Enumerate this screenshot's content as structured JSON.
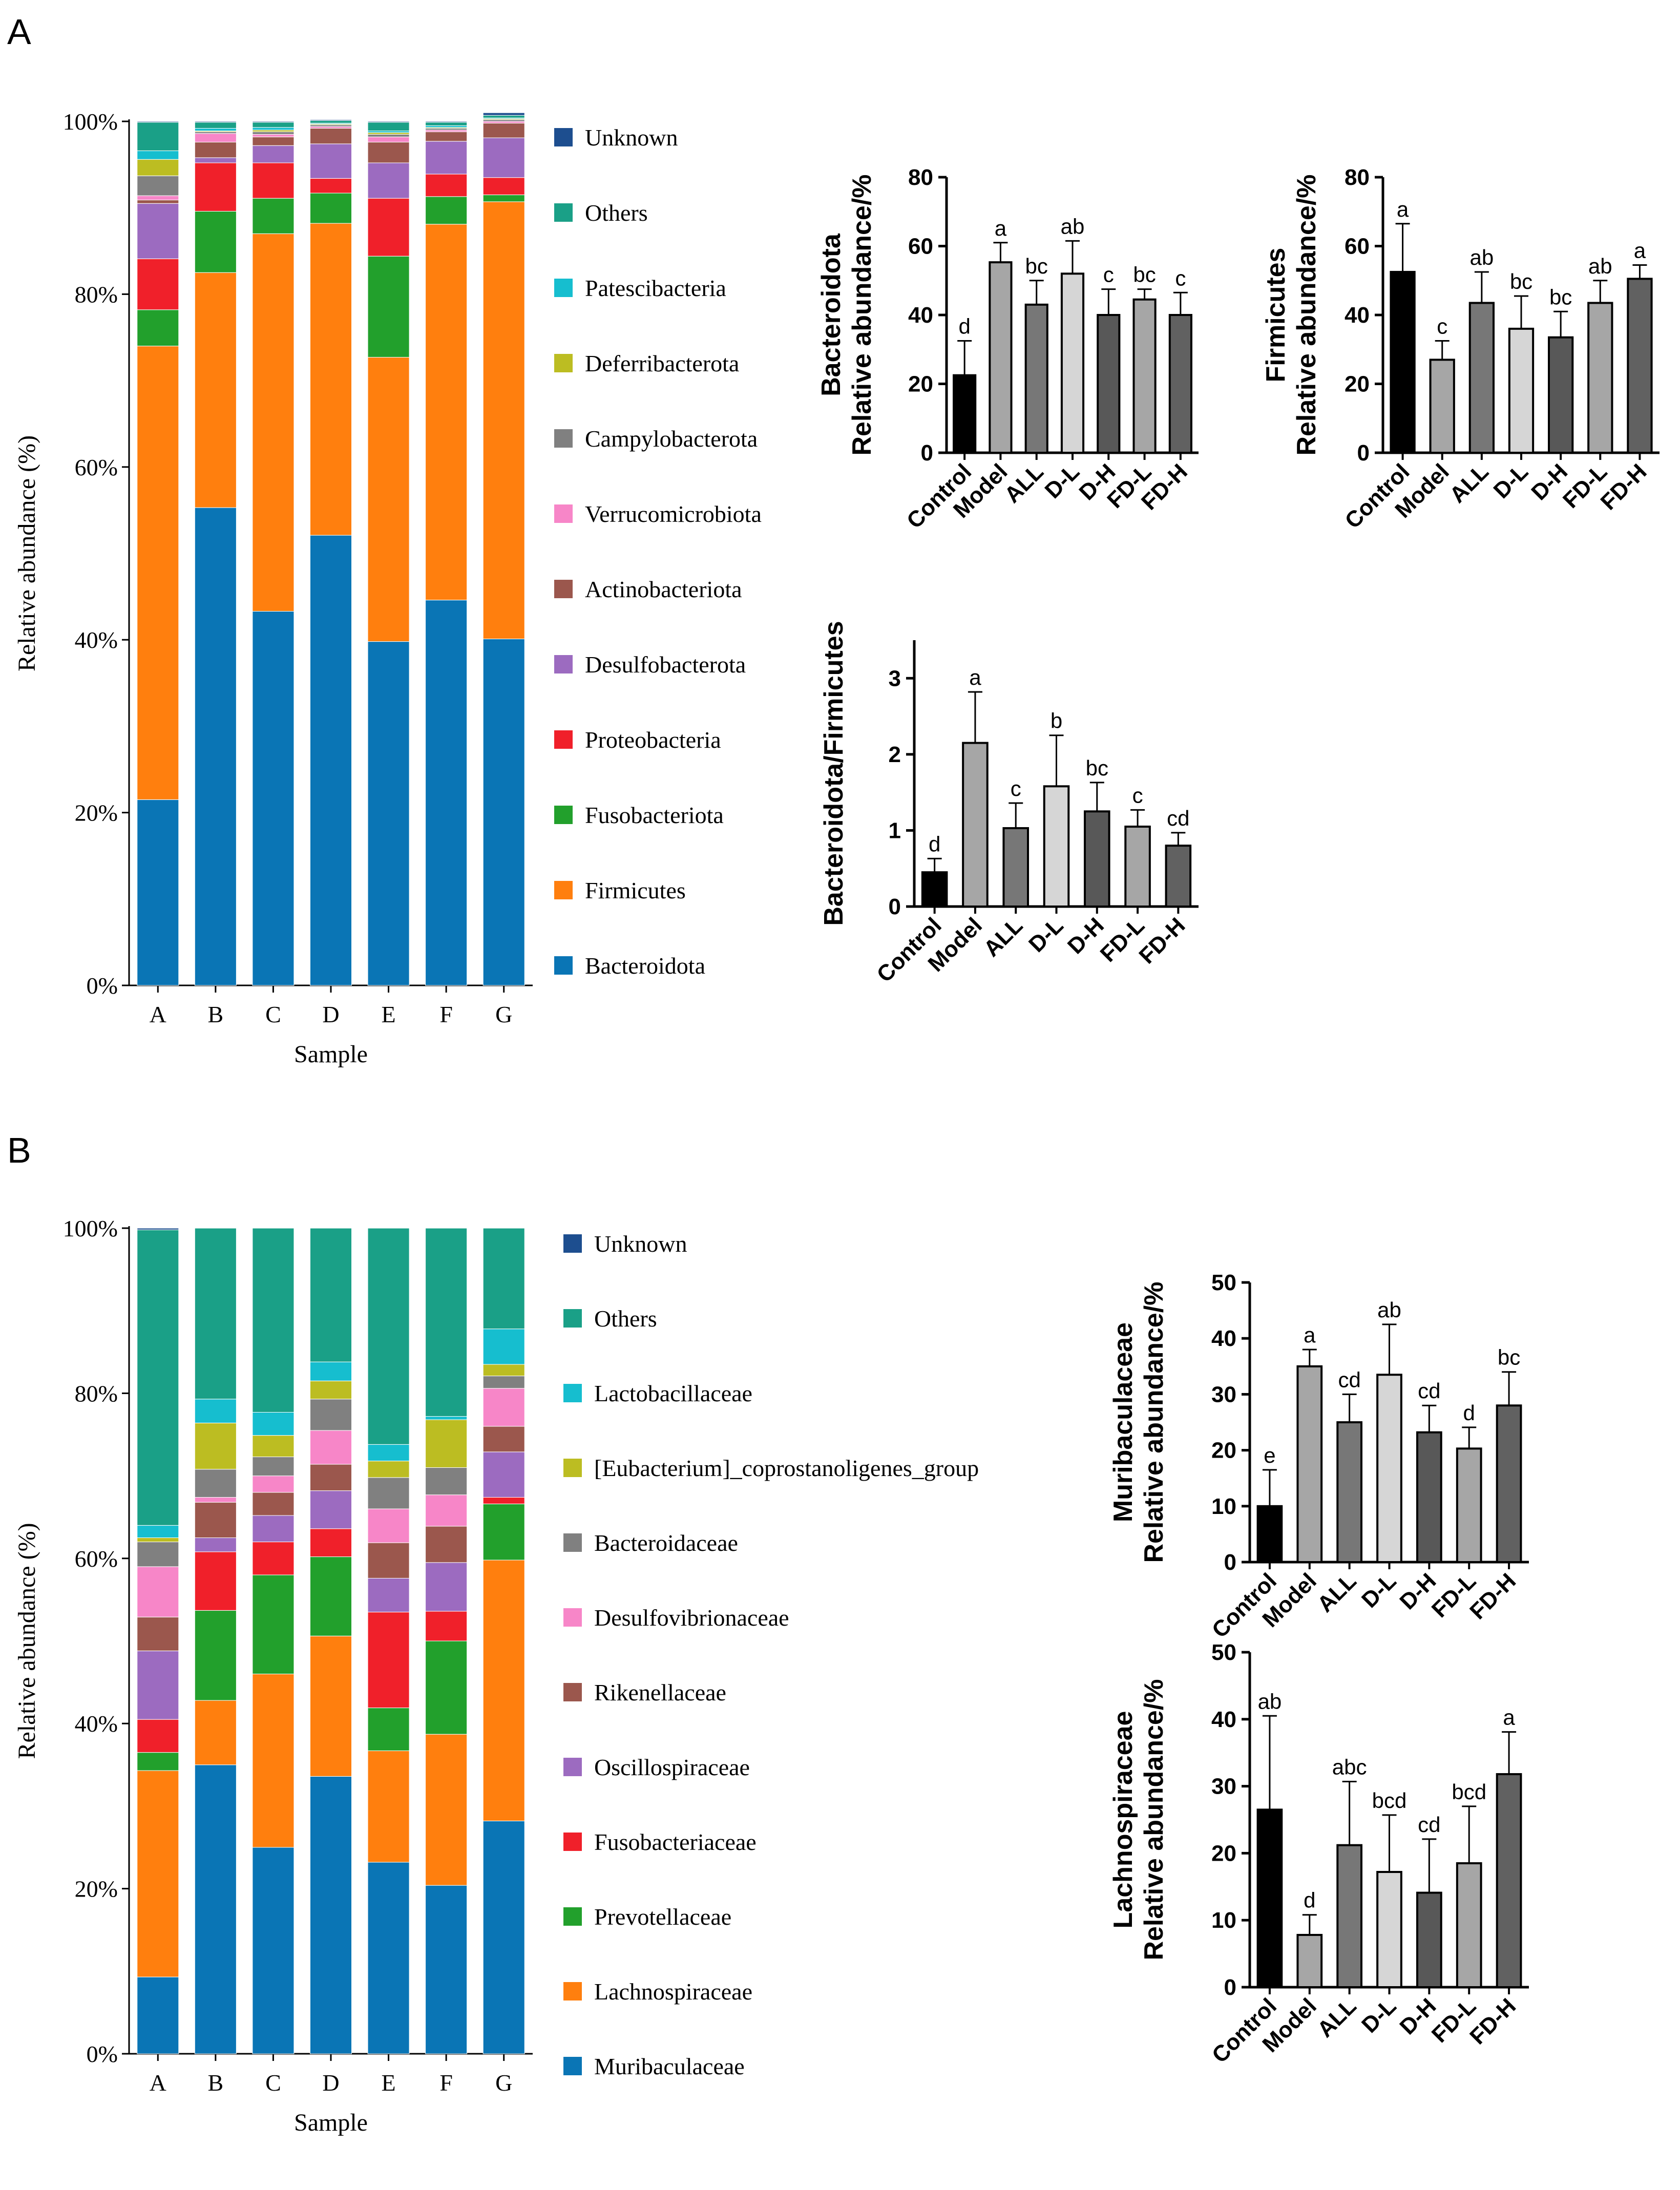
{
  "panels": {
    "a": "A",
    "b": "B"
  },
  "stacked_legend_title_none": "",
  "chart_data": [
    {
      "id": "phylum_stacked",
      "type": "bar",
      "stacked": true,
      "title": "",
      "xlabel": "Sample",
      "ylabel": "Relative abundance (%)",
      "ylim": [
        0,
        100
      ],
      "yticks": [
        "0%",
        "20%",
        "40%",
        "60%",
        "80%",
        "100%"
      ],
      "categories": [
        "A",
        "B",
        "C",
        "D",
        "E",
        "F",
        "G"
      ],
      "series": [
        {
          "name": "Bacteroidota",
          "color": "#0a75b5",
          "values": [
            21.5,
            55.3,
            43.3,
            52.1,
            39.8,
            44.6,
            40.1
          ]
        },
        {
          "name": "Firmicutes",
          "color": "#ff7f0e",
          "values": [
            52.5,
            27.2,
            43.7,
            36.1,
            32.9,
            43.5,
            50.6
          ]
        },
        {
          "name": "Fusobacteriota",
          "color": "#22a02c",
          "values": [
            4.2,
            7.1,
            4.1,
            3.5,
            11.7,
            3.2,
            0.8
          ]
        },
        {
          "name": "Proteobacteria",
          "color": "#f0202a",
          "values": [
            5.9,
            5.6,
            4.1,
            1.7,
            6.7,
            2.6,
            2.0
          ]
        },
        {
          "name": "Desulfobacterota",
          "color": "#9c6bc0",
          "values": [
            6.4,
            0.6,
            2.0,
            4.0,
            4.1,
            3.8,
            4.6
          ]
        },
        {
          "name": "Actinobacteriota",
          "color": "#9b574d",
          "values": [
            0.4,
            1.8,
            1.0,
            1.8,
            2.4,
            1.1,
            1.7
          ]
        },
        {
          "name": "Verrucomicrobiota",
          "color": "#f786c8",
          "values": [
            0.5,
            1.0,
            0.3,
            0.2,
            0.6,
            0.2,
            0.2
          ]
        },
        {
          "name": "Campylobacterota",
          "color": "#808080",
          "values": [
            2.3,
            0.2,
            0.3,
            0.2,
            0.3,
            0.2,
            0.2
          ]
        },
        {
          "name": "Deferribacterota",
          "color": "#bcbd22",
          "values": [
            1.9,
            0.1,
            0.2,
            0.1,
            0.2,
            0.1,
            0.1
          ]
        },
        {
          "name": "Patescibacteria",
          "color": "#16becf",
          "values": [
            1.0,
            0.3,
            0.3,
            0.1,
            0.2,
            0.2,
            0.1
          ]
        },
        {
          "name": "Others",
          "color": "#1aa087",
          "values": [
            3.3,
            0.7,
            0.6,
            0.3,
            1.0,
            0.4,
            0.3
          ]
        },
        {
          "name": "Unknown",
          "color": "#1d4e8f",
          "values": [
            0.1,
            0.1,
            0.1,
            0.1,
            0.1,
            0.1,
            0.3
          ]
        }
      ]
    },
    {
      "id": "bacteroidota_bar",
      "type": "bar",
      "title": "",
      "ylabel": [
        "Bacteroidota",
        "Relative abundance/%"
      ],
      "ylim": [
        0,
        80
      ],
      "yticks": [
        "0",
        "20",
        "40",
        "60",
        "80"
      ],
      "categories": [
        "Control",
        "Model",
        "ALL",
        "D-L",
        "D-H",
        "FD-L",
        "FD-H"
      ],
      "values": [
        22.5,
        55.3,
        43.0,
        52.0,
        40.0,
        44.5,
        40.0
      ],
      "errors": [
        10.0,
        5.7,
        7.0,
        9.5,
        7.5,
        3.0,
        6.5
      ],
      "letters": [
        "d",
        "a",
        "bc",
        "ab",
        "c",
        "bc",
        "c"
      ],
      "colors": [
        "#000000",
        "#a6a6a6",
        "#777777",
        "#d6d6d6",
        "#585858",
        "#a6a6a6",
        "#616161"
      ]
    },
    {
      "id": "firmicutes_bar",
      "type": "bar",
      "title": "",
      "ylabel": [
        "Firmicutes",
        "Relative abundance/%"
      ],
      "ylim": [
        0,
        80
      ],
      "yticks": [
        "0",
        "20",
        "40",
        "60",
        "80"
      ],
      "categories": [
        "Control",
        "Model",
        "ALL",
        "D-L",
        "D-H",
        "FD-L",
        "FD-H"
      ],
      "values": [
        52.5,
        27.0,
        43.5,
        36.0,
        33.5,
        43.5,
        50.5
      ],
      "errors": [
        14.0,
        5.5,
        9.0,
        9.5,
        7.5,
        6.5,
        4.0
      ],
      "letters": [
        "a",
        "c",
        "ab",
        "bc",
        "bc",
        "ab",
        "a"
      ],
      "colors": [
        "#000000",
        "#a6a6a6",
        "#777777",
        "#d6d6d6",
        "#585858",
        "#a6a6a6",
        "#616161"
      ]
    },
    {
      "id": "ratio_bar",
      "type": "bar",
      "title": "",
      "ylabel": [
        "Bacteroidota/Firmicutes"
      ],
      "ylim": [
        0,
        3.5
      ],
      "yticks": [
        "0",
        "1",
        "2",
        "3"
      ],
      "ytick_values": [
        0,
        1,
        2,
        3
      ],
      "categories": [
        "Control",
        "Model",
        "ALL",
        "D-L",
        "D-H",
        "FD-L",
        "FD-H"
      ],
      "values": [
        0.45,
        2.15,
        1.03,
        1.58,
        1.25,
        1.05,
        0.8
      ],
      "errors": [
        0.18,
        0.67,
        0.33,
        0.67,
        0.38,
        0.22,
        0.17
      ],
      "letters": [
        "d",
        "a",
        "c",
        "b",
        "bc",
        "c",
        "cd"
      ],
      "colors": [
        "#000000",
        "#a6a6a6",
        "#777777",
        "#d6d6d6",
        "#585858",
        "#a6a6a6",
        "#616161"
      ]
    },
    {
      "id": "family_stacked",
      "type": "bar",
      "stacked": true,
      "title": "",
      "xlabel": "Sample",
      "ylabel": "Relative abundance (%)",
      "ylim": [
        0,
        100
      ],
      "yticks": [
        "0%",
        "20%",
        "40%",
        "60%",
        "80%",
        "100%"
      ],
      "categories": [
        "A",
        "B",
        "C",
        "D",
        "E",
        "F",
        "G"
      ],
      "series": [
        {
          "name": "Muribaculaceae",
          "color": "#0a75b5",
          "values": [
            9.3,
            35.0,
            25.0,
            33.6,
            23.2,
            20.4,
            28.2
          ]
        },
        {
          "name": "Lachnospiraceae",
          "color": "#ff7f0e",
          "values": [
            25.0,
            7.8,
            21.0,
            17.0,
            13.5,
            18.3,
            31.6
          ]
        },
        {
          "name": "Prevotellaceae",
          "color": "#22a02c",
          "values": [
            2.2,
            10.9,
            12.0,
            9.6,
            5.2,
            11.3,
            6.8
          ]
        },
        {
          "name": "Fusobacteriaceae",
          "color": "#f0202a",
          "values": [
            4.0,
            7.1,
            4.0,
            3.4,
            11.6,
            3.6,
            0.8
          ]
        },
        {
          "name": "Oscillospiraceae",
          "color": "#9c6bc0",
          "values": [
            8.3,
            1.7,
            3.2,
            4.6,
            4.1,
            5.9,
            5.5
          ]
        },
        {
          "name": "Rikenellaceae",
          "color": "#9b574d",
          "values": [
            4.1,
            4.3,
            2.8,
            3.2,
            4.3,
            4.4,
            3.1
          ]
        },
        {
          "name": "Desulfovibrionaceae",
          "color": "#f786c8",
          "values": [
            6.1,
            0.6,
            2.0,
            4.1,
            4.1,
            3.8,
            4.6
          ]
        },
        {
          "name": "Bacteroidaceae",
          "color": "#808080",
          "values": [
            3.0,
            3.4,
            2.3,
            3.8,
            3.8,
            3.3,
            1.5
          ]
        },
        {
          "name": "[Eubacterium]_coprostanoligenes_group",
          "color": "#bcbd22",
          "values": [
            0.5,
            5.6,
            2.6,
            2.2,
            2.0,
            5.8,
            1.4
          ]
        },
        {
          "name": "Lactobacillaceae",
          "color": "#16becf",
          "values": [
            1.5,
            2.9,
            2.8,
            2.3,
            2.0,
            0.4,
            4.3
          ]
        },
        {
          "name": "Others",
          "color": "#1aa087",
          "values": [
            35.8,
            20.7,
            22.3,
            16.2,
            26.2,
            22.8,
            12.2
          ]
        },
        {
          "name": "Unknown",
          "color": "#1d4e8f",
          "values": [
            0.2,
            0.0,
            0.0,
            0.0,
            0.0,
            0.0,
            0.0
          ]
        }
      ]
    },
    {
      "id": "muribaculaceae_bar",
      "type": "bar",
      "title": "",
      "ylabel": [
        "Muribaculaceae",
        "Relative abundance/%"
      ],
      "ylim": [
        0,
        50
      ],
      "yticks": [
        "0",
        "10",
        "20",
        "30",
        "40",
        "50"
      ],
      "categories": [
        "Control",
        "Model",
        "ALL",
        "D-L",
        "D-H",
        "FD-L",
        "FD-H"
      ],
      "values": [
        10.0,
        35.0,
        25.0,
        33.5,
        23.2,
        20.3,
        28.0
      ],
      "errors": [
        6.5,
        3.0,
        5.0,
        9.0,
        4.8,
        3.8,
        6.0
      ],
      "letters": [
        "e",
        "a",
        "cd",
        "ab",
        "cd",
        "d",
        "bc"
      ],
      "colors": [
        "#000000",
        "#a6a6a6",
        "#777777",
        "#d6d6d6",
        "#585858",
        "#a6a6a6",
        "#616161"
      ]
    },
    {
      "id": "lachnospiraceae_bar",
      "type": "bar",
      "title": "",
      "ylabel": [
        "Lachnospiraceae",
        "Relative abundance/%"
      ],
      "ylim": [
        0,
        50
      ],
      "yticks": [
        "0",
        "10",
        "20",
        "30",
        "40",
        "50"
      ],
      "categories": [
        "Control",
        "Model",
        "ALL",
        "D-L",
        "D-H",
        "FD-L",
        "FD-H"
      ],
      "values": [
        26.5,
        7.8,
        21.2,
        17.2,
        14.1,
        18.5,
        31.8
      ],
      "errors": [
        14.0,
        3.0,
        9.5,
        8.5,
        8.0,
        8.5,
        6.3
      ],
      "letters": [
        "ab",
        "d",
        "abc",
        "bcd",
        "cd",
        "bcd",
        "a"
      ],
      "colors": [
        "#000000",
        "#a6a6a6",
        "#777777",
        "#d6d6d6",
        "#585858",
        "#a6a6a6",
        "#616161"
      ]
    }
  ]
}
